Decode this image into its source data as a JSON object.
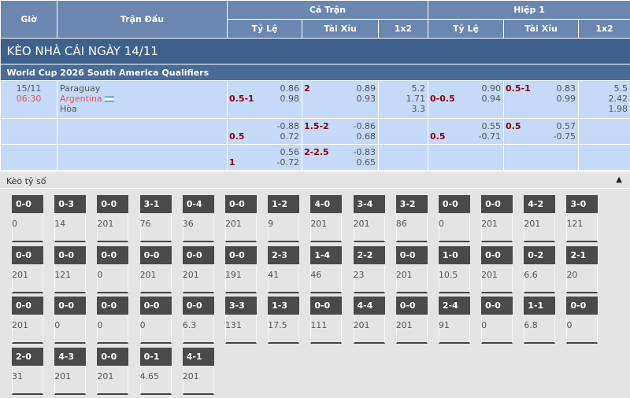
{
  "header": {
    "time": "Giờ",
    "match": "Trận Đấu",
    "full": "Cả Trận",
    "half": "Hiệp 1",
    "handicap": "Tỷ Lệ",
    "overunder": "Tài Xỉu",
    "x12": "1x2"
  },
  "title": "KÈO NHÀ CÁI NGÀY 14/11",
  "league": "World Cup 2026 South America Qualifiers",
  "match": {
    "date": "15/11",
    "time": "06:30",
    "home": "Paraguay",
    "away": "Argentina",
    "draw": "Hòa",
    "away_flag": "argentina-flag-icon"
  },
  "rows": [
    {
      "ft_hdp": {
        "line": "0.5-1",
        "line_row": 2,
        "odds": [
          "0.86",
          "0.98"
        ]
      },
      "ft_ou": {
        "line": "2",
        "line_row": 1,
        "odds": [
          "0.89",
          "0.93"
        ]
      },
      "ft_1x2": [
        "5.2",
        "1.71",
        "3.3"
      ],
      "h1_hdp": {
        "line": "0-0.5",
        "line_row": 2,
        "odds": [
          "0.90",
          "0.94"
        ]
      },
      "h1_ou": {
        "line": "0.5-1",
        "line_row": 1,
        "odds": [
          "0.83",
          "0.99"
        ]
      },
      "h1_1x2": [
        "5.5",
        "2.42",
        "1.98"
      ]
    },
    {
      "ft_hdp": {
        "line": "0.5",
        "line_row": 2,
        "odds": [
          "-0.88",
          "0.72"
        ]
      },
      "ft_ou": {
        "line": "1.5-2",
        "line_row": 1,
        "odds": [
          "-0.86",
          "0.68"
        ]
      },
      "ft_1x2": [],
      "h1_hdp": {
        "line": "0.5",
        "line_row": 2,
        "odds": [
          "0.55",
          "-0.71"
        ]
      },
      "h1_ou": {
        "line": "0.5",
        "line_row": 1,
        "odds": [
          "0.57",
          "-0.75"
        ]
      },
      "h1_1x2": []
    },
    {
      "ft_hdp": {
        "line": "1",
        "line_row": 2,
        "odds": [
          "0.56",
          "-0.72"
        ]
      },
      "ft_ou": {
        "line": "2-2.5",
        "line_row": 1,
        "odds": [
          "-0.83",
          "0.65"
        ]
      },
      "ft_1x2": [],
      "h1_hdp": null,
      "h1_ou": null,
      "h1_1x2": []
    }
  ],
  "correct_score": {
    "label": "Kèo tỷ số",
    "toggle_icon": "triangle-up-icon",
    "items": [
      [
        "0-0",
        "0"
      ],
      [
        "0-3",
        "14"
      ],
      [
        "0-0",
        "201"
      ],
      [
        "3-1",
        "76"
      ],
      [
        "0-4",
        "36"
      ],
      [
        "0-0",
        "201"
      ],
      [
        "1-2",
        "9"
      ],
      [
        "4-0",
        "201"
      ],
      [
        "3-4",
        "201"
      ],
      [
        "3-2",
        "86"
      ],
      [
        "0-0",
        "0"
      ],
      [
        "0-0",
        "201"
      ],
      [
        "4-2",
        "201"
      ],
      [
        "3-0",
        "121"
      ],
      [
        "0-0",
        "201"
      ],
      [
        "0-0",
        "121"
      ],
      [
        "0-0",
        "0"
      ],
      [
        "0-0",
        "201"
      ],
      [
        "0-0",
        "201"
      ],
      [
        "0-0",
        "191"
      ],
      [
        "2-3",
        "41"
      ],
      [
        "1-4",
        "46"
      ],
      [
        "2-2",
        "23"
      ],
      [
        "0-0",
        "201"
      ],
      [
        "1-0",
        "10.5"
      ],
      [
        "0-0",
        "201"
      ],
      [
        "0-2",
        "6.6"
      ],
      [
        "2-1",
        "20"
      ],
      [
        "0-0",
        "201"
      ],
      [
        "0-0",
        "0"
      ],
      [
        "0-0",
        "0"
      ],
      [
        "0-0",
        "0"
      ],
      [
        "0-0",
        "6.3"
      ],
      [
        "3-3",
        "131"
      ],
      [
        "1-3",
        "17.5"
      ],
      [
        "0-0",
        "111"
      ],
      [
        "4-4",
        "201"
      ],
      [
        "0-0",
        "201"
      ],
      [
        "2-4",
        "91"
      ],
      [
        "0-0",
        "0"
      ],
      [
        "1-1",
        "6.8"
      ],
      [
        "0-0",
        "0"
      ],
      [
        "2-0",
        "31"
      ],
      [
        "4-3",
        "201"
      ],
      [
        "0-0",
        "201"
      ],
      [
        "0-1",
        "4.65"
      ],
      [
        "4-1",
        "201"
      ]
    ]
  }
}
